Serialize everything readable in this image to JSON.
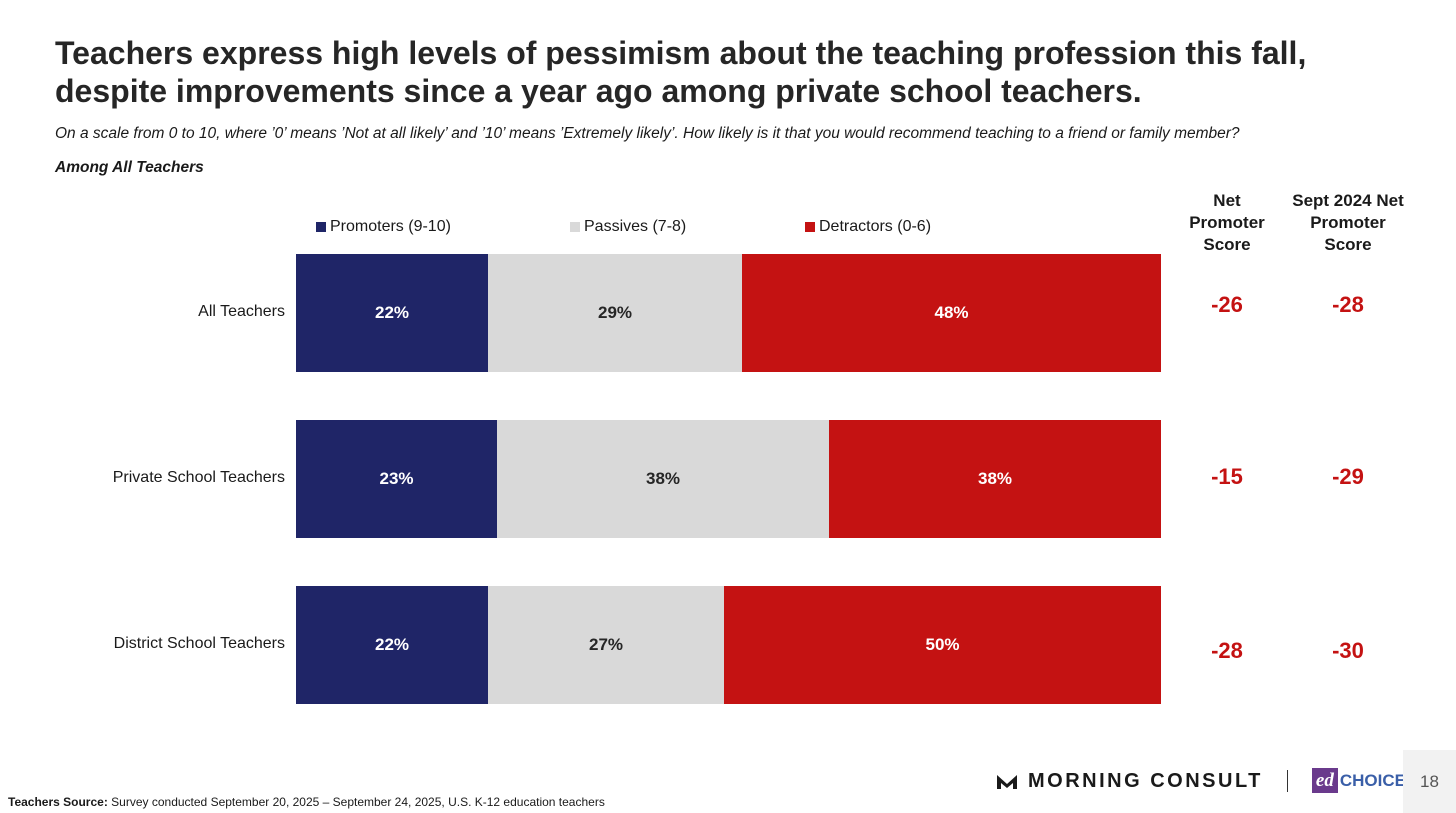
{
  "slide": {
    "title_line1": "Teachers express high levels of pessimism about the teaching profession this fall,",
    "title_line2": "despite improvements since a year ago among private school teachers.",
    "question": "On a scale from 0 to 10, where ’0’ means ’Not at all likely’ and ’10’ means ’Extremely likely’. How likely is it that you would recommend teaching to a friend or family member?",
    "base": "Among All Teachers",
    "page_number": "18"
  },
  "columns": {
    "nps_line1": "Net",
    "nps_line2": "Promoter",
    "nps_line3": "Score",
    "prior_line1": "Sept 2024 Net",
    "prior_line2": "Promoter",
    "prior_line3": "Score"
  },
  "source": {
    "label": "Teachers Source:",
    "text": "Survey conducted September 20, 2025 – September 24, 2025, U.S. K-12 education teachers"
  },
  "logos": {
    "morning_consult": "MORNING CONSULT",
    "ed": "ed",
    "choice": "CHOICE"
  },
  "colors": {
    "promoters": "#1f2567",
    "passives": "#d9d9d9",
    "detractors": "#c41212",
    "score": "#c41212"
  },
  "chart_data": {
    "type": "bar",
    "orientation": "horizontal-stacked",
    "categories": [
      "All Teachers",
      "Private School Teachers",
      "District School Teachers"
    ],
    "series": [
      {
        "name": "Promoters (9-10)",
        "values": [
          22,
          23,
          22
        ],
        "labels": [
          "22%",
          "23%",
          "22%"
        ]
      },
      {
        "name": "Passives (7-8)",
        "values": [
          29,
          38,
          27
        ],
        "labels": [
          "29%",
          "38%",
          "27%"
        ]
      },
      {
        "name": "Detractors (0-6)",
        "values": [
          48,
          38,
          50
        ],
        "labels": [
          "48%",
          "38%",
          "50%"
        ]
      }
    ],
    "net_promoter_score": [
      "-26",
      "-15",
      "-28"
    ],
    "sept_2024_net_promoter_score": [
      "-28",
      "-29",
      "-30"
    ],
    "legend_position": "top",
    "xlim": [
      0,
      100
    ]
  }
}
